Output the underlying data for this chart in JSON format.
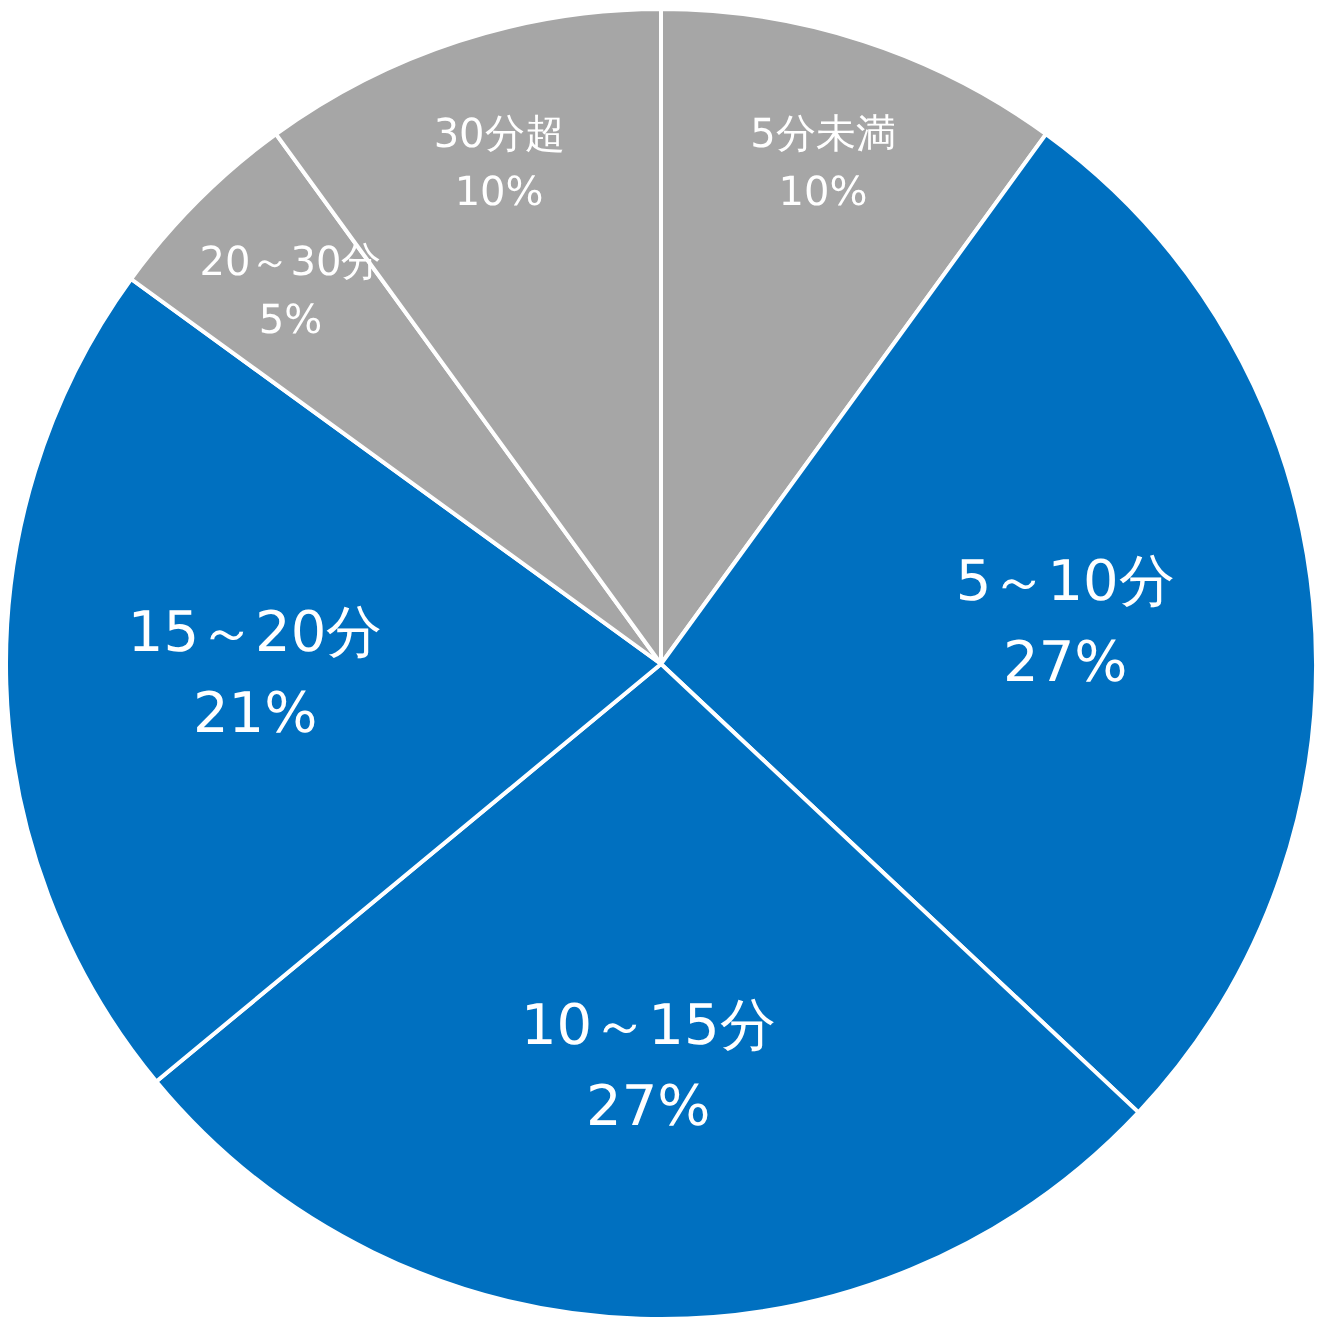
{
  "chart_data": {
    "type": "pie",
    "categories": [
      "5分未満",
      "5～10分",
      "10～15分",
      "15～20分",
      "20～30分",
      "30分超"
    ],
    "values": [
      10,
      27,
      27,
      21,
      5,
      10
    ],
    "colors": [
      "#a6a6a6",
      "#0070c0",
      "#0070c0",
      "#0070c0",
      "#a6a6a6",
      "#a6a6a6"
    ],
    "value_labels": [
      "10%",
      "27%",
      "27%",
      "21%",
      "5%",
      "10%"
    ],
    "legend": false
  }
}
